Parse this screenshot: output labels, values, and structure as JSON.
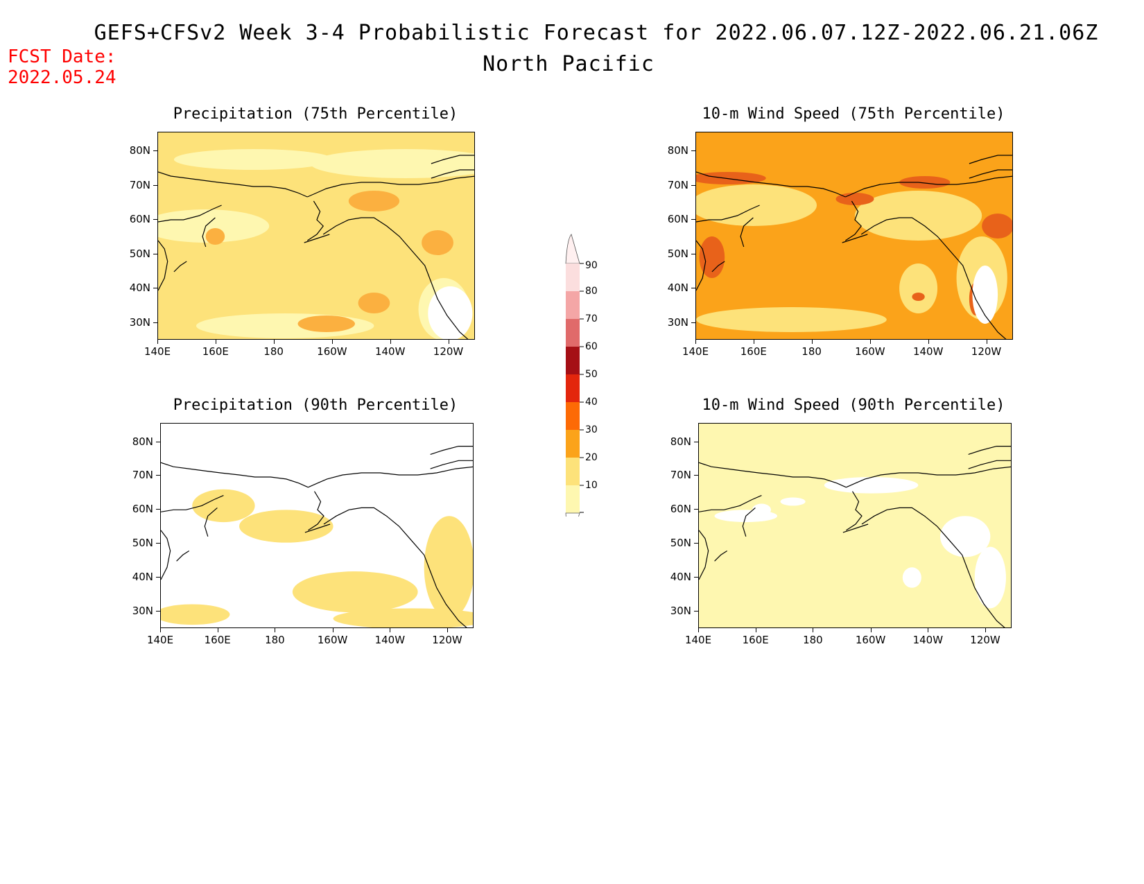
{
  "header": {
    "title": "GEFS+CFSv2 Week 3-4 Probabilistic Forecast for 2022.06.07.12Z-2022.06.21.06Z",
    "subtitle": "North Pacific",
    "fcst_label": "FCST Date:",
    "fcst_date": "2022.05.24"
  },
  "axes": {
    "lat_labels": [
      "80N",
      "70N",
      "60N",
      "50N",
      "40N",
      "30N"
    ],
    "lon_labels": [
      "140E",
      "160E",
      "180",
      "160W",
      "140W",
      "120W"
    ]
  },
  "panels": [
    {
      "title": "Precipitation (75th Percentile)",
      "base_color": "#fde27a",
      "patch_color": "#fbb040",
      "secondary_color": "#fef7b0"
    },
    {
      "title": "10-m Wind Speed (75th Percentile)",
      "base_color": "#fba31a",
      "patch_color": "#e8621a",
      "secondary_color": "#fde27a"
    },
    {
      "title": "Precipitation (90th Percentile)",
      "base_color": "#ffffff",
      "patch_color": "#fef7b0",
      "secondary_color": "#fde27a"
    },
    {
      "title": "10-m Wind Speed (90th Percentile)",
      "base_color": "#fef7b0",
      "patch_color": "#fde27a",
      "secondary_color": "#ffffff"
    }
  ],
  "colorbar": {
    "levels": [
      "90",
      "80",
      "70",
      "60",
      "50",
      "40",
      "30",
      "20",
      "10"
    ],
    "colors": [
      "#fbdede",
      "#f4a6a6",
      "#e06a6a",
      "#a50f15",
      "#e3260d",
      "#fd6a05",
      "#fba31a",
      "#fde27a",
      "#fef7b0"
    ]
  }
}
